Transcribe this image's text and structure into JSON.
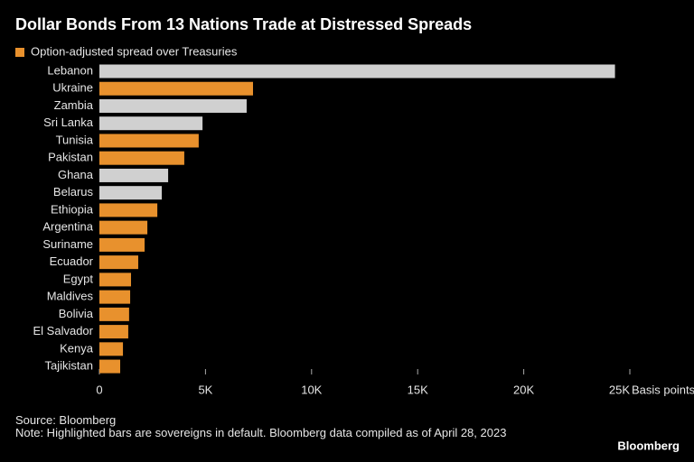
{
  "chart_data": {
    "type": "hbar",
    "title": "Dollar Bonds From 13 Nations Trade at Distressed Spreads",
    "categories": [
      "Lebanon",
      "Ukraine",
      "Zambia",
      "Sri Lanka",
      "Tunisia",
      "Pakistan",
      "Ghana",
      "Belarus",
      "Ethiopia",
      "Argentina",
      "Suriname",
      "Ecuador",
      "Egypt",
      "Maldives",
      "Bolivia",
      "El Salvador",
      "Kenya",
      "Tajikistan"
    ],
    "series": [
      {
        "name": "Option-adjusted spread over Treasuries",
        "color": "#e8912d",
        "values": [
          24300,
          7240,
          6940,
          4860,
          4680,
          4000,
          3240,
          2940,
          2730,
          2260,
          2130,
          1830,
          1490,
          1450,
          1400,
          1360,
          1110,
          980
        ]
      }
    ],
    "bar_colors": [
      "#d0d0d0",
      "#e8912d",
      "#d0d0d0",
      "#d0d0d0",
      "#e8912d",
      "#e8912d",
      "#d0d0d0",
      "#d0d0d0",
      "#e8912d",
      "#e8912d",
      "#e8912d",
      "#e8912d",
      "#e8912d",
      "#e8912d",
      "#e8912d",
      "#e8912d",
      "#e8912d",
      "#e8912d"
    ],
    "xlim": [
      0,
      25000
    ],
    "xticks": [
      0,
      {
        "value": 5000,
        "label": "5K"
      },
      {
        "value": 10000,
        "label": "10K"
      },
      {
        "value": 15000,
        "label": "15K"
      },
      {
        "value": 20000,
        "label": "20K"
      },
      {
        "value": 25000,
        "label": "25K"
      }
    ],
    "x_label": "Basis points",
    "source": "Source: Bloomberg",
    "note": "Note: Highlighted bars are sovereigns in default. Bloomberg data compiled as of April 28, 2023",
    "logo": "Bloomberg"
  }
}
